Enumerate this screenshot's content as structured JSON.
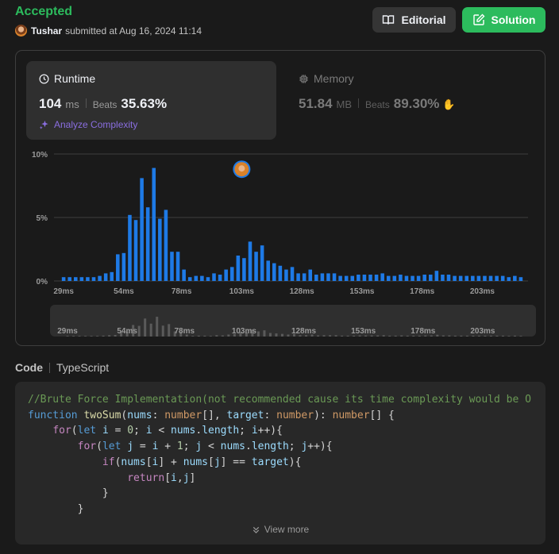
{
  "header": {
    "status": "Accepted",
    "user": "Tushar",
    "submitted_text": "submitted at Aug 16, 2024 11:14",
    "editorial_label": "Editorial",
    "solution_label": "Solution"
  },
  "runtime": {
    "title": "Runtime",
    "value": "104",
    "unit": "ms",
    "beats_label": "Beats",
    "beats_pct": "35.63%",
    "analyze_label": "Analyze Complexity"
  },
  "memory": {
    "title": "Memory",
    "value": "51.84",
    "unit": "MB",
    "beats_label": "Beats",
    "beats_pct": "89.30%"
  },
  "colors": {
    "accepted": "#2cbb5d",
    "bar": "#1e7ae6",
    "solution_button": "#2cbb5d",
    "analyze": "#8a6ee0"
  },
  "chart_data": {
    "type": "bar",
    "ylim": [
      0,
      10
    ],
    "y_ticks": [
      "0%",
      "5%",
      "10%"
    ],
    "x_tick_labels": [
      "29ms",
      "54ms",
      "78ms",
      "103ms",
      "128ms",
      "153ms",
      "178ms",
      "203ms"
    ],
    "x_tick_values": [
      29,
      54,
      78,
      103,
      128,
      153,
      178,
      203
    ],
    "x_range": [
      25,
      222
    ],
    "grid": true,
    "bar_color": "#1e7ae6",
    "user_marker_x": 103,
    "series": [
      {
        "x": [
          29,
          31.5,
          34,
          36.5,
          39,
          41.5,
          44,
          46.5,
          49,
          51.5,
          54,
          56.5,
          59,
          61.5,
          64,
          66.5,
          69,
          71.5,
          74,
          76.5,
          79,
          81.5,
          84,
          86.5,
          89,
          91.5,
          94,
          96.5,
          99,
          101.5,
          104,
          106.5,
          109,
          111.5,
          114,
          116.5,
          119,
          121.5,
          124,
          126.5,
          129,
          131.5,
          134,
          136.5,
          139,
          141.5,
          144,
          146.5,
          149,
          151.5,
          154,
          156.5,
          159,
          161.5,
          164,
          166.5,
          169,
          171.5,
          174,
          176.5,
          179,
          181.5,
          184,
          186.5,
          189,
          191.5,
          194,
          196.5,
          199,
          201.5,
          204,
          206.5,
          209,
          211.5,
          214,
          216.5,
          219
        ],
        "values": [
          0.3,
          0.3,
          0.3,
          0.3,
          0.3,
          0.3,
          0.4,
          0.6,
          0.7,
          2.1,
          2.2,
          5.2,
          4.8,
          8.1,
          5.8,
          8.9,
          4.9,
          5.6,
          2.3,
          2.3,
          0.9,
          0.3,
          0.4,
          0.4,
          0.3,
          0.6,
          0.5,
          0.9,
          1.1,
          2.0,
          1.8,
          3.1,
          2.3,
          2.8,
          1.6,
          1.4,
          1.2,
          0.9,
          1.1,
          0.6,
          0.6,
          0.9,
          0.5,
          0.6,
          0.6,
          0.6,
          0.4,
          0.4,
          0.4,
          0.5,
          0.5,
          0.5,
          0.5,
          0.6,
          0.4,
          0.4,
          0.5,
          0.4,
          0.4,
          0.4,
          0.5,
          0.5,
          0.8,
          0.5,
          0.5,
          0.4,
          0.4,
          0.4,
          0.4,
          0.4,
          0.4,
          0.4,
          0.4,
          0.4,
          0.3,
          0.4,
          0.3
        ]
      }
    ]
  },
  "code_section": {
    "label": "Code",
    "language": "TypeScript",
    "view_more": "View more"
  }
}
